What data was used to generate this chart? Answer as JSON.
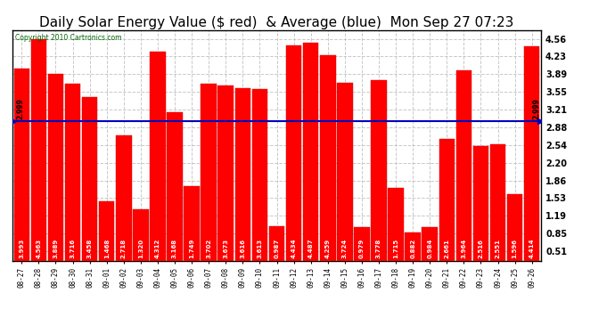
{
  "title": "Daily Solar Energy Value ($ red)  & Average (blue)  Mon Sep 27 07:23",
  "copyright": "Copyright 2010 Cartronics.com",
  "categories": [
    "08-27",
    "08-28",
    "08-29",
    "08-30",
    "08-31",
    "09-01",
    "09-02",
    "09-03",
    "09-04",
    "09-05",
    "09-06",
    "09-07",
    "09-08",
    "09-09",
    "09-10",
    "09-11",
    "09-12",
    "09-13",
    "09-14",
    "09-15",
    "09-16",
    "09-17",
    "09-18",
    "09-19",
    "09-20",
    "09-21",
    "09-22",
    "09-23",
    "09-24",
    "09-25",
    "09-26"
  ],
  "values": [
    3.993,
    4.563,
    3.889,
    3.716,
    3.458,
    1.468,
    2.718,
    1.32,
    4.312,
    3.168,
    1.749,
    3.702,
    3.673,
    3.616,
    3.613,
    0.987,
    4.434,
    4.487,
    4.259,
    3.724,
    0.979,
    3.778,
    1.715,
    0.882,
    0.984,
    2.661,
    3.964,
    2.516,
    2.551,
    1.596,
    4.414
  ],
  "average": 2.999,
  "bar_color": "#ff0000",
  "avg_line_color": "#0000bb",
  "bg_color": "#ffffff",
  "plot_bg_color": "#ffffff",
  "grid_color": "#bbbbbb",
  "title_fontsize": 11,
  "yticks": [
    0.51,
    0.85,
    1.19,
    1.53,
    1.86,
    2.2,
    2.54,
    2.88,
    3.21,
    3.55,
    3.89,
    4.23,
    4.56
  ],
  "ylim": [
    0.34,
    4.73
  ],
  "avg_label": "2.999"
}
